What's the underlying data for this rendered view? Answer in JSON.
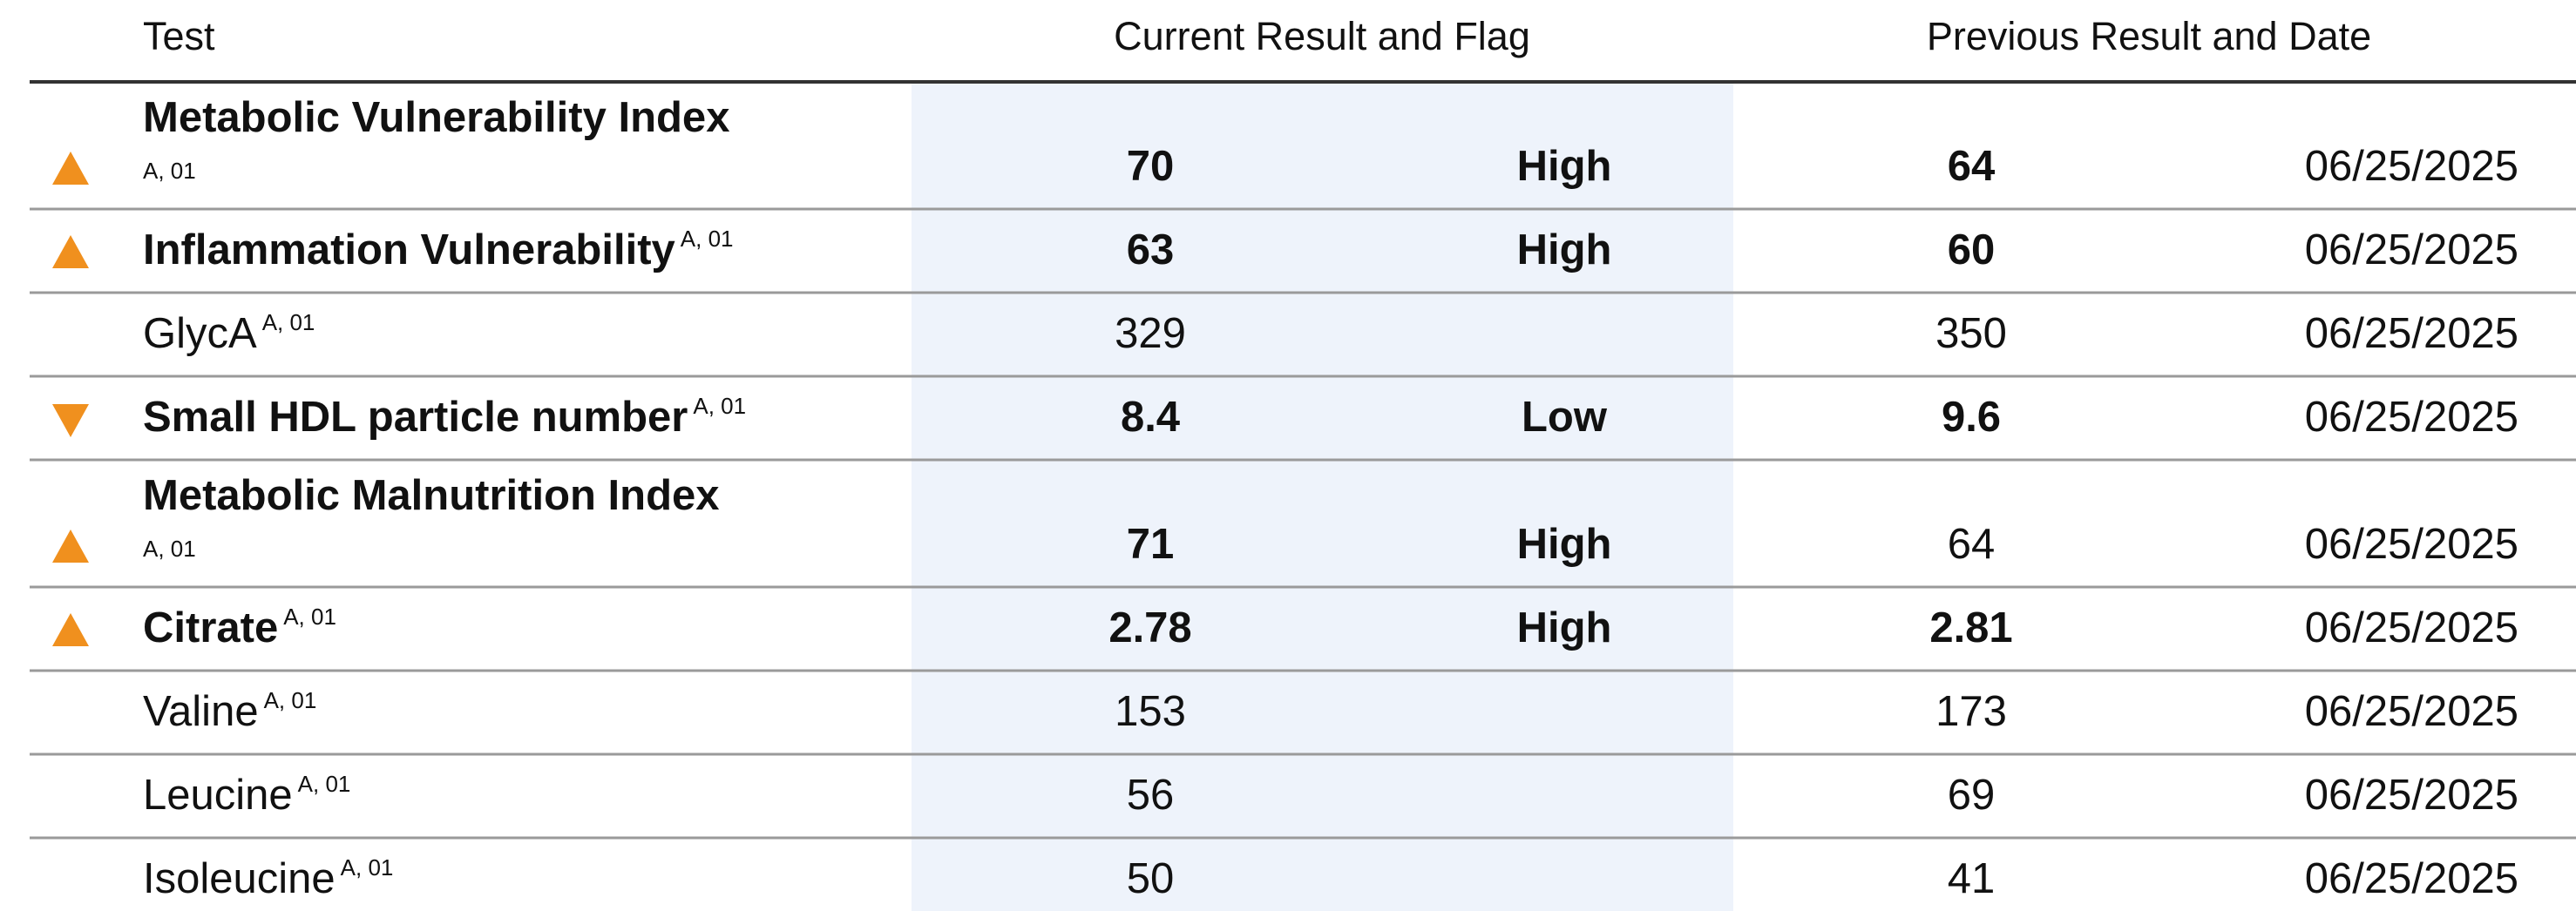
{
  "header": {
    "test": "Test",
    "current": "Current Result and Flag",
    "previous": "Previous Result and Date"
  },
  "rows": [
    {
      "test": "Metabolic Vulnerability Index",
      "note": "A, 01",
      "current": "70",
      "flag": "High",
      "previous": "64",
      "previous_bold": true,
      "date": "06/25/2025"
    },
    {
      "test": "Inflammation Vulnerability",
      "note": "A, 01",
      "current": "63",
      "flag": "High",
      "previous": "60",
      "previous_bold": true,
      "date": "06/25/2025"
    },
    {
      "test": "GlycA",
      "note": "A, 01",
      "current": "329",
      "flag": null,
      "previous": "350",
      "previous_bold": false,
      "date": "06/25/2025"
    },
    {
      "test": "Small HDL particle number",
      "note": "A, 01",
      "current": "8.4",
      "flag": "Low",
      "previous": "9.6",
      "previous_bold": true,
      "date": "06/25/2025"
    },
    {
      "test": "Metabolic Malnutrition Index",
      "note": "A, 01",
      "current": "71",
      "flag": "High",
      "previous": "64",
      "previous_bold": false,
      "date": "06/25/2025"
    },
    {
      "test": "Citrate",
      "note": "A, 01",
      "current": "2.78",
      "flag": "High",
      "previous": "2.81",
      "previous_bold": true,
      "date": "06/25/2025"
    },
    {
      "test": "Valine",
      "note": "A, 01",
      "current": "153",
      "flag": null,
      "previous": "173",
      "previous_bold": false,
      "date": "06/25/2025"
    },
    {
      "test": "Leucine",
      "note": "A, 01",
      "current": "56",
      "flag": null,
      "previous": "69",
      "previous_bold": false,
      "date": "06/25/2025"
    },
    {
      "test": "Isoleucine",
      "note": "A, 01",
      "current": "50",
      "flag": null,
      "previous": "41",
      "previous_bold": false,
      "date": "06/25/2025"
    }
  ]
}
